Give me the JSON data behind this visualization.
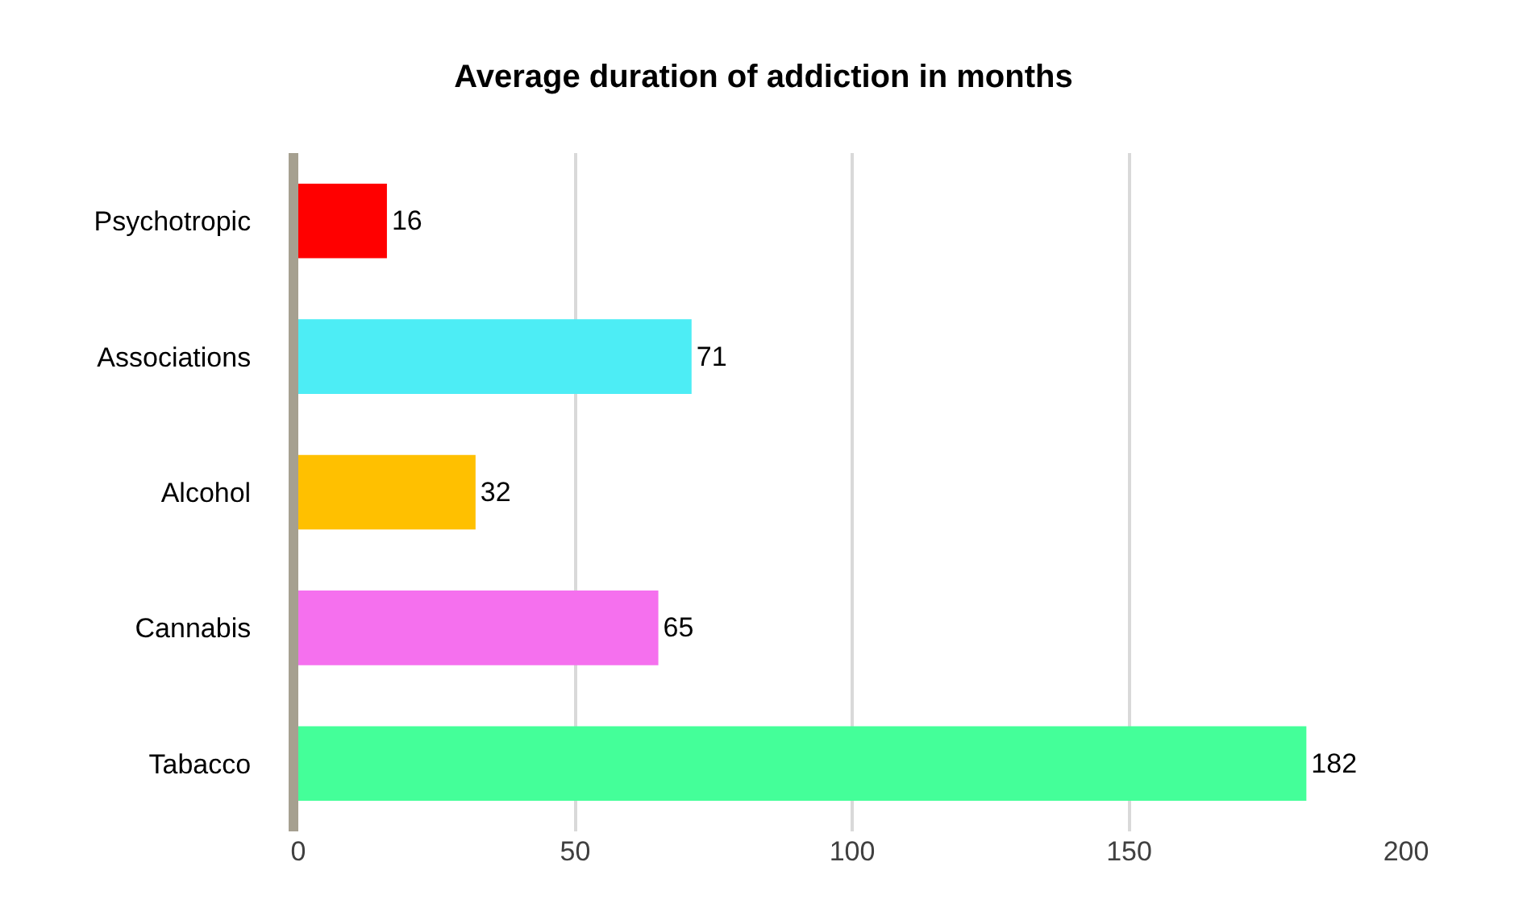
{
  "chart_data": {
    "type": "bar",
    "orientation": "horizontal",
    "title": "Average duration of addiction in months",
    "categories": [
      "Psychotropic",
      "Associations",
      "Alcohol",
      "Cannabis",
      "Tabacco"
    ],
    "values": [
      16,
      71,
      32,
      65,
      182
    ],
    "colors": [
      "#ff0000",
      "#4dedf5",
      "#ffc000",
      "#f570ee",
      "#44ff99"
    ],
    "xlim": [
      0,
      200
    ],
    "xticks": [
      0,
      50,
      100,
      150,
      200
    ],
    "grid": "x",
    "data_labels": true
  }
}
